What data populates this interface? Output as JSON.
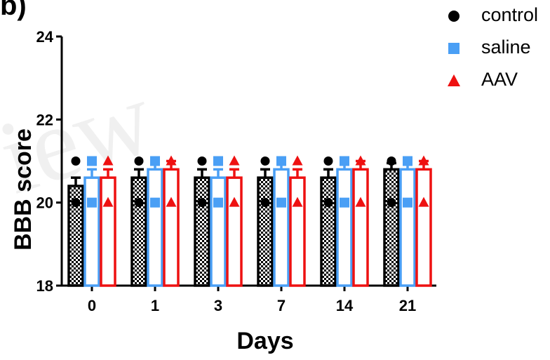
{
  "panel_label": "b)",
  "watermark": "iew",
  "colors": {
    "control": "#000000",
    "saline": "#4a9ff5",
    "AAV": "#ee1111"
  },
  "chart_data": {
    "type": "bar",
    "title": "",
    "xlabel": "Days",
    "ylabel": "BBB score",
    "categories": [
      "0",
      "1",
      "3",
      "7",
      "14",
      "21"
    ],
    "ylim": [
      18,
      24
    ],
    "yticks": [
      "18",
      "20",
      "22",
      "24"
    ],
    "legend_position": "top-right",
    "series": [
      {
        "name": "control",
        "marker": "circle",
        "fill": "checkered",
        "values": [
          20.4,
          20.6,
          20.6,
          20.6,
          20.6,
          20.8
        ],
        "error": [
          0.2,
          0.2,
          0.2,
          0.2,
          0.2,
          0.15
        ]
      },
      {
        "name": "saline",
        "marker": "square",
        "fill": "open",
        "values": [
          20.6,
          20.8,
          20.6,
          20.8,
          20.8,
          20.8
        ],
        "error": [
          0.2,
          0.2,
          0.2,
          0.2,
          0.2,
          0.2
        ]
      },
      {
        "name": "AAV",
        "marker": "triangle",
        "fill": "open",
        "values": [
          20.6,
          20.8,
          20.6,
          20.6,
          20.8,
          20.8
        ],
        "error": [
          0.2,
          0.2,
          0.2,
          0.2,
          0.2,
          0.2
        ]
      }
    ],
    "points": {
      "control": [
        [
          21,
          20
        ],
        [
          21,
          20
        ],
        [
          21,
          20
        ],
        [
          21,
          20
        ],
        [
          21,
          20
        ],
        [
          21,
          20
        ]
      ],
      "saline": [
        [
          21,
          20
        ],
        [
          21,
          20
        ],
        [
          21,
          20
        ],
        [
          21,
          20
        ],
        [
          21,
          20
        ],
        [
          21,
          20
        ]
      ],
      "AAV": [
        [
          21,
          20
        ],
        [
          21,
          20
        ],
        [
          21,
          20
        ],
        [
          21,
          20
        ],
        [
          21,
          20
        ],
        [
          21,
          20
        ]
      ]
    }
  }
}
